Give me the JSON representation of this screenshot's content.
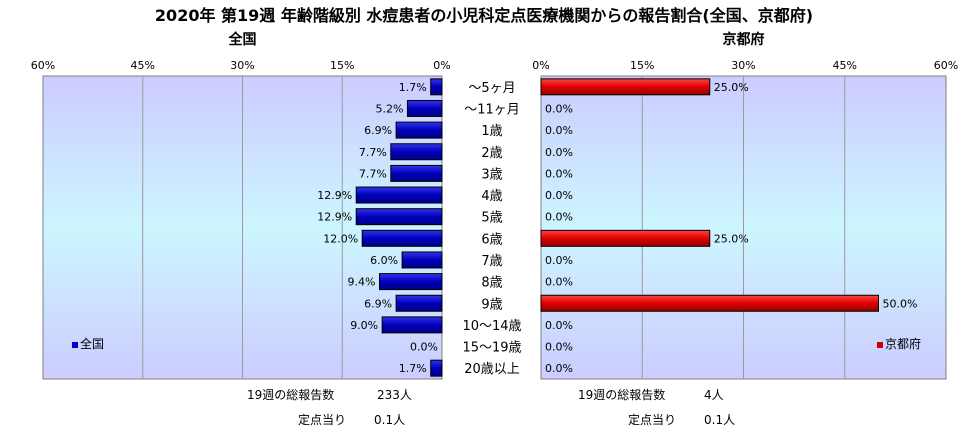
{
  "title": "2020年 第19週 年齢階級別 水痘患者の小児科定点医療機関からの報告割合(全国、京都府)",
  "chart_data": [
    {
      "type": "bar",
      "orientation": "horizontal",
      "direction": "right-to-left",
      "title": "全国",
      "categories": [
        "～5ヶ月",
        "～11ヶ月",
        "1歳",
        "2歳",
        "3歳",
        "4歳",
        "5歳",
        "6歳",
        "7歳",
        "8歳",
        "9歳",
        "10～14歳",
        "15～19歳",
        "20歳以上"
      ],
      "series": [
        {
          "name": "全国",
          "color": "#0000cc",
          "values": [
            1.7,
            5.2,
            6.9,
            7.7,
            7.7,
            12.9,
            12.9,
            12.0,
            6.0,
            9.4,
            6.9,
            9.0,
            0.0,
            1.7
          ],
          "labels": [
            "1.7%",
            "5.2%",
            "6.9%",
            "7.7%",
            "7.7%",
            "12.9%",
            "12.9%",
            "12.0%",
            "6.0%",
            "9.4%",
            "6.9%",
            "9.0%",
            "0.0%",
            "1.7%"
          ]
        }
      ],
      "xlim": [
        0,
        60
      ],
      "ticks": [
        "0%",
        "15%",
        "30%",
        "45%",
        "60%"
      ],
      "grid": true,
      "legend": "bottom-left"
    },
    {
      "type": "bar",
      "orientation": "horizontal",
      "direction": "left-to-right",
      "title": "京都府",
      "categories": [
        "～5ヶ月",
        "～11ヶ月",
        "1歳",
        "2歳",
        "3歳",
        "4歳",
        "5歳",
        "6歳",
        "7歳",
        "8歳",
        "9歳",
        "10～14歳",
        "15～19歳",
        "20歳以上"
      ],
      "series": [
        {
          "name": "京都府",
          "color": "#cc0000",
          "values": [
            25.0,
            0.0,
            0.0,
            0.0,
            0.0,
            0.0,
            0.0,
            25.0,
            0.0,
            0.0,
            50.0,
            0.0,
            0.0,
            0.0
          ],
          "labels": [
            "25.0%",
            "0.0%",
            "0.0%",
            "0.0%",
            "0.0%",
            "0.0%",
            "0.0%",
            "25.0%",
            "0.0%",
            "0.0%",
            "50.0%",
            "0.0%",
            "0.0%",
            "0.0%"
          ]
        }
      ],
      "xlim": [
        0,
        60
      ],
      "ticks": [
        "0%",
        "15%",
        "30%",
        "45%",
        "60%"
      ],
      "grid": true,
      "legend": "bottom-right"
    }
  ],
  "footer": {
    "left": {
      "total_label": "19週の総報告数",
      "total_value": "233人",
      "per_label": "定点当り",
      "per_value": "0.1人"
    },
    "right": {
      "total_label": "19週の総報告数",
      "total_value": "4人",
      "per_label": "定点当り",
      "per_value": "0.1人"
    }
  }
}
